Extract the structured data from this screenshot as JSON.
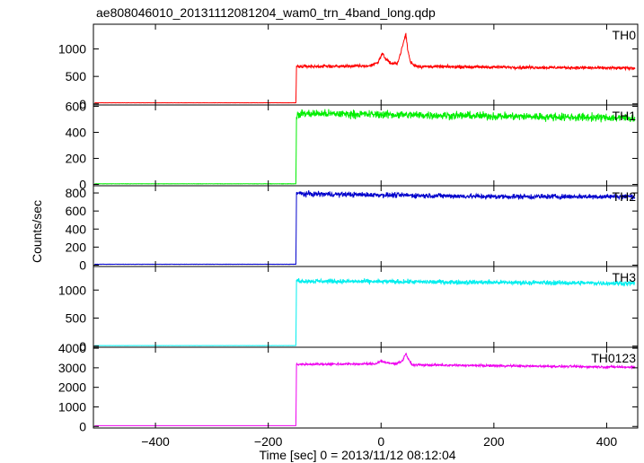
{
  "chart_data": {
    "type": "line",
    "title": "ae808046010_20131112081204_wam0_trn_4band_long.qdp",
    "xlabel": "Time [sec] 0 = 2013/11/12 08:12:04",
    "ylabel": "Counts/sec",
    "xlim": [
      -510,
      455
    ],
    "xticks": [
      -400,
      -200,
      0,
      200,
      400
    ],
    "grid": false,
    "panels": [
      {
        "name": "TH0",
        "color": "#ff0000",
        "ylim": [
          -20,
          1450
        ],
        "yticks": [
          0,
          500,
          1000
        ],
        "profile": [
          [
            -510,
            20
          ],
          [
            -151,
            20
          ],
          [
            -150,
            680
          ],
          [
            -20,
            690
          ],
          [
            -5,
            760
          ],
          [
            2,
            920
          ],
          [
            8,
            820
          ],
          [
            20,
            720
          ],
          [
            30,
            760
          ],
          [
            38,
            1050
          ],
          [
            42,
            1200
          ],
          [
            44,
            1280
          ],
          [
            47,
            1000
          ],
          [
            52,
            760
          ],
          [
            60,
            700
          ],
          [
            70,
            680
          ],
          [
            450,
            650
          ]
        ],
        "noise": 28
      },
      {
        "name": "TH1",
        "color": "#00ee00",
        "ylim": [
          -10,
          610
        ],
        "yticks": [
          0,
          200,
          400,
          600
        ],
        "profile": [
          [
            -510,
            5
          ],
          [
            -151,
            5
          ],
          [
            -150,
            520
          ],
          [
            -140,
            545
          ],
          [
            450,
            510
          ]
        ],
        "noise": 30
      },
      {
        "name": "TH2",
        "color": "#0000cc",
        "ylim": [
          -15,
          880
        ],
        "yticks": [
          0,
          200,
          400,
          600,
          800
        ],
        "profile": [
          [
            -510,
            10
          ],
          [
            -151,
            10
          ],
          [
            -150,
            800
          ],
          [
            -140,
            790
          ],
          [
            200,
            760
          ],
          [
            450,
            760
          ]
        ],
        "noise": 28
      },
      {
        "name": "TH3",
        "color": "#00eeee",
        "ylim": [
          -20,
          1420
        ],
        "yticks": [
          0,
          500,
          1000
        ],
        "profile": [
          [
            -510,
            10
          ],
          [
            -151,
            10
          ],
          [
            -150,
            1180
          ],
          [
            -140,
            1160
          ],
          [
            450,
            1120
          ]
        ],
        "noise": 40
      },
      {
        "name": "TH0123",
        "color": "#ee00ee",
        "ylim": [
          -80,
          4050
        ],
        "yticks": [
          0,
          1000,
          2000,
          3000,
          4000
        ],
        "profile": [
          [
            -510,
            40
          ],
          [
            -151,
            40
          ],
          [
            -150,
            3180
          ],
          [
            -10,
            3200
          ],
          [
            0,
            3350
          ],
          [
            10,
            3250
          ],
          [
            25,
            3200
          ],
          [
            38,
            3350
          ],
          [
            44,
            3750
          ],
          [
            48,
            3450
          ],
          [
            55,
            3150
          ],
          [
            450,
            3030
          ]
        ],
        "noise": 55
      }
    ]
  }
}
